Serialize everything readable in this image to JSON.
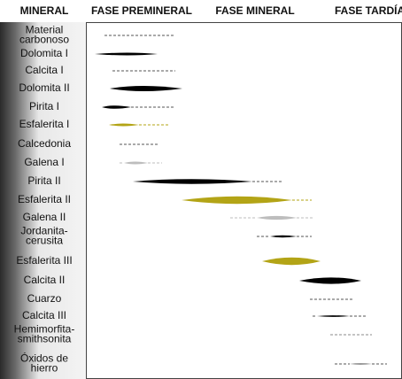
{
  "header": {
    "columns": [
      "MINERAL",
      "FASE PREMINERAL",
      "FASE MINERAL",
      "FASE TARDÍA"
    ]
  },
  "minerals": [
    [
      "Material",
      "carbonoso"
    ],
    [
      "Dolomita I"
    ],
    [
      "Calcita I"
    ],
    [
      "Dolomita II"
    ],
    [
      "Pirita I"
    ],
    [
      "Esfalerita I"
    ],
    [
      "Calcedonia"
    ],
    [
      "Galena I"
    ],
    [
      "Pirita II"
    ],
    [
      "Esfalerita II"
    ],
    [
      "Galena II"
    ],
    [
      "Jordanita-",
      "cerusita"
    ],
    [
      "Esfalerita III"
    ],
    [
      "Calcita II"
    ],
    [
      "Cuarzo"
    ],
    [
      "Calcita III"
    ],
    [
      "Hemimorfita-",
      "smithsonita"
    ],
    [
      "Óxidos de",
      "hierro"
    ]
  ]
}
